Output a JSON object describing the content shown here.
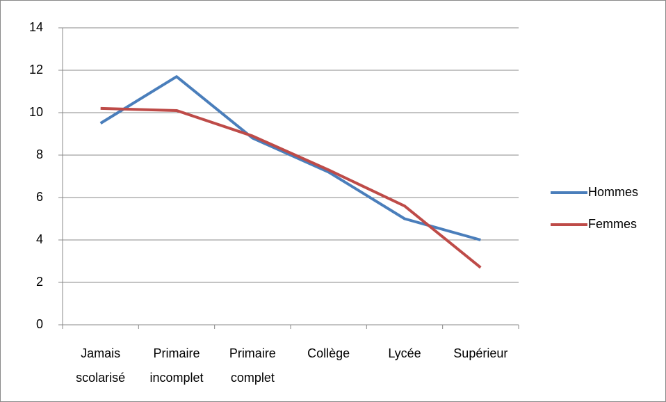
{
  "chart_data": {
    "type": "line",
    "categories": [
      "Jamais scolarisé",
      "Primaire incomplet",
      "Primaire complet",
      "Collège",
      "Lycée",
      "Supérieur"
    ],
    "series": [
      {
        "name": "Hommes",
        "color": "#4a7ebb",
        "values": [
          9.5,
          11.7,
          8.8,
          7.2,
          5.0,
          4.0
        ]
      },
      {
        "name": "Femmes",
        "color": "#be4b48",
        "values": [
          10.2,
          10.1,
          8.9,
          7.3,
          5.6,
          2.7
        ]
      }
    ],
    "ylim": [
      0,
      14
    ],
    "yticks": [
      0,
      2,
      4,
      6,
      8,
      10,
      12,
      14
    ],
    "grid": true,
    "legend": "right"
  }
}
